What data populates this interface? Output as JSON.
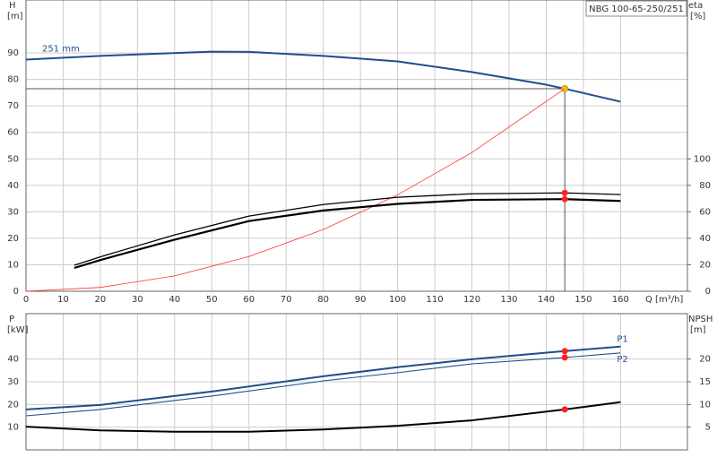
{
  "chart_data": [
    {
      "type": "line",
      "title": "NBG 100-65-250/251",
      "y_label": "H",
      "y_unit": "[m]",
      "y2_label": "eta",
      "y2_unit": "[%]",
      "x_label": "Q [m³/h]",
      "xlim": [
        0,
        178
      ],
      "xticks": [
        0,
        10,
        20,
        30,
        40,
        50,
        60,
        70,
        80,
        90,
        100,
        110,
        120,
        130,
        140,
        150,
        160
      ],
      "xtick_labels": true,
      "ylim": [
        0,
        110
      ],
      "yticks": [
        0,
        10,
        20,
        30,
        40,
        50,
        60,
        70,
        80,
        90
      ],
      "y2lim": [
        0,
        220
      ],
      "y2ticks": [
        0,
        20,
        40,
        60,
        80,
        100
      ],
      "grid": true,
      "duty_x": 145,
      "series": [
        {
          "name": "251 mm",
          "label_pos": "start",
          "color": "#1f4e8c",
          "width": 2,
          "duty_marker": "#f5c518",
          "x": [
            0,
            20,
            50,
            60,
            80,
            100,
            120,
            140,
            145,
            160
          ],
          "values": [
            87.5,
            88.9,
            90.5,
            90.4,
            88.9,
            86.8,
            82.8,
            78,
            76.5,
            71.6
          ]
        },
        {
          "color": "#ff3030",
          "width": 0.8,
          "x": [
            0,
            20,
            40,
            60,
            80,
            100,
            120,
            145
          ],
          "values": [
            0,
            1.46,
            5.8,
            13.1,
            23.3,
            36.4,
            52.4,
            76.5
          ]
        },
        {
          "color": "#000000",
          "width": 2.2,
          "axis": "y2",
          "duty_marker": "#ff2020",
          "x": [
            13,
            20,
            40,
            60,
            80,
            100,
            120,
            145,
            160
          ],
          "values": [
            17.6,
            23.6,
            39,
            53,
            61,
            66,
            69,
            69.6,
            68.2
          ]
        },
        {
          "color": "#000000",
          "width": 1.3,
          "axis": "y2",
          "duty_marker": "#ff2020",
          "x": [
            13,
            20,
            40,
            60,
            80,
            100,
            120,
            145,
            160
          ],
          "values": [
            19.6,
            26,
            42.6,
            56.8,
            65.5,
            71,
            73.6,
            74.3,
            73
          ]
        }
      ]
    },
    {
      "type": "line",
      "y_label": "P",
      "y_unit": "[kW]",
      "y2_label": "NPSH",
      "y2_unit": "[m]",
      "xlim": [
        0,
        178
      ],
      "xticks": [
        0,
        10,
        20,
        30,
        40,
        50,
        60,
        70,
        80,
        90,
        100,
        110,
        120,
        130,
        140,
        150,
        160
      ],
      "xtick_labels": false,
      "ylim": [
        0,
        60
      ],
      "yticks": [
        10,
        20,
        30,
        40
      ],
      "y2lim": [
        0,
        30
      ],
      "y2ticks": [
        5,
        10,
        15,
        20
      ],
      "grid": true,
      "duty_x": 145,
      "series": [
        {
          "name": "P1",
          "label_pos": "end",
          "color": "#1f4e8c",
          "width": 2,
          "duty_marker": "#ff2020",
          "x": [
            0,
            20,
            50,
            80,
            100,
            120,
            145,
            160
          ],
          "values": [
            17.8,
            19.8,
            25.7,
            32.4,
            36.4,
            39.9,
            43.5,
            45.5
          ]
        },
        {
          "name": "P2",
          "label_pos": "end",
          "color": "#1f4e8c",
          "width": 1.1,
          "duty_marker": "#ff2020",
          "x": [
            0,
            20,
            50,
            80,
            100,
            120,
            145,
            160
          ],
          "values": [
            15,
            17.8,
            23.7,
            30.4,
            34,
            37.9,
            40.7,
            42.7
          ]
        },
        {
          "color": "#000000",
          "width": 2,
          "axis": "y2",
          "duty_marker": "#ff2020",
          "x": [
            0,
            20,
            40,
            60,
            80,
            100,
            120,
            145,
            160
          ],
          "values": [
            5.1,
            4.3,
            4,
            4,
            4.5,
            5.3,
            6.5,
            8.9,
            10.5
          ]
        }
      ]
    }
  ]
}
